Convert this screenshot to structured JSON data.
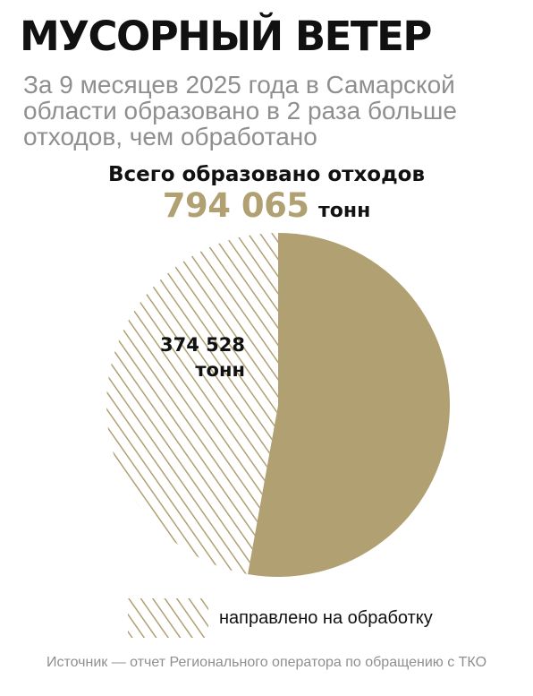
{
  "header": {
    "title": "МУСОРНЫЙ ВЕТЕР",
    "subtitle": "За 9 месяцев 2025 года в Самарской области образовано в 2 раза больше отходов, чем обработано"
  },
  "total": {
    "label": "Всего образовано отходов",
    "value": "794 065",
    "unit": "тонн"
  },
  "chart_data": {
    "type": "pie",
    "total": 794065,
    "unit": "тонн",
    "slices": [
      {
        "name": "направлено на обработку",
        "value": 374528,
        "label_value": "374 528",
        "label_unit": "тонн",
        "pattern": "hatched"
      },
      {
        "value": 419537,
        "pattern": "solid"
      }
    ]
  },
  "legend": {
    "label": "направлено на обработку"
  },
  "source": "Источник — отчет Регионального оператора по обращению с ТКО",
  "colors": {
    "accent": "#b0a072",
    "hatch": "#b0a072",
    "text": "#111111",
    "muted": "#8f8f8f"
  }
}
